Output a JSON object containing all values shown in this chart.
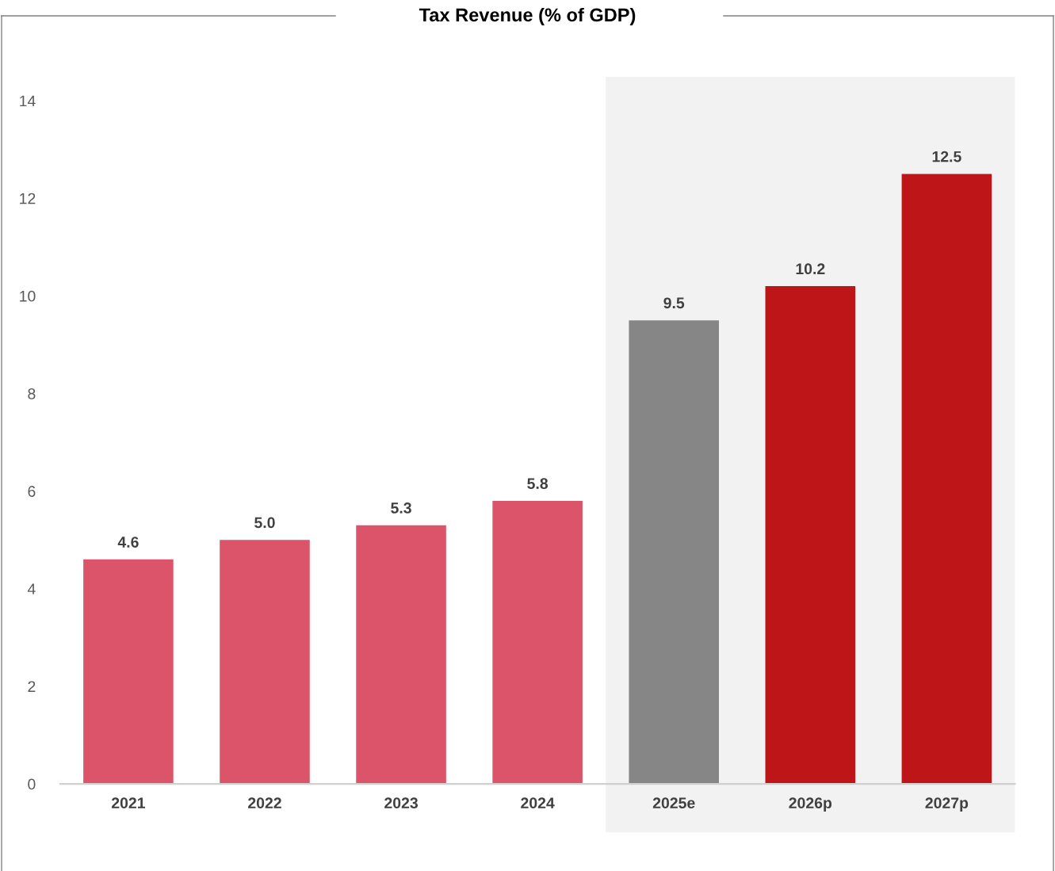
{
  "chart_data": {
    "type": "bar",
    "title": "Tax Revenue (% of GDP)",
    "categories": [
      "2021",
      "2022",
      "2023",
      "2024",
      "2025e",
      "2026p",
      "2027p"
    ],
    "values": [
      4.6,
      5.0,
      5.3,
      5.8,
      9.5,
      10.2,
      12.5
    ],
    "colors": [
      "#dc5469",
      "#dc5469",
      "#dc5469",
      "#dc5469",
      "#868686",
      "#be1518",
      "#be1518"
    ],
    "value_labels": [
      "4.6",
      "5.0",
      "5.3",
      "5.8",
      "9.5",
      "10.2",
      "12.5"
    ],
    "ylim": [
      0,
      14
    ],
    "yticks": [
      0,
      2,
      4,
      6,
      8,
      10,
      12,
      14
    ],
    "bands": [
      {
        "axis": "x",
        "from": "2025e",
        "to": "2027p",
        "color": "#f2f2f2"
      }
    ],
    "grid": false
  }
}
